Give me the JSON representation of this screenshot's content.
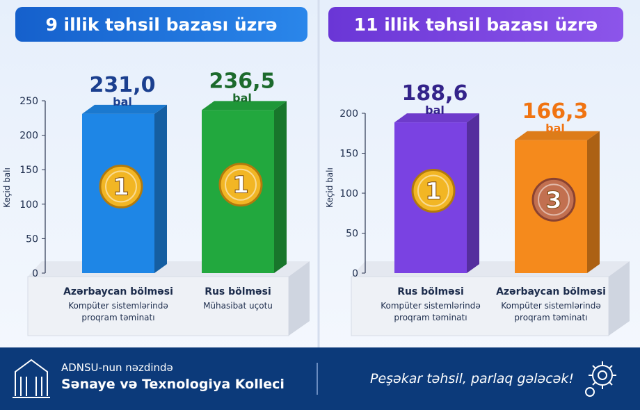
{
  "chart_data": [
    {
      "type": "bar",
      "title": "9 illik təhsil bazası üzrə",
      "y_label": "Keçid balı",
      "unit": "bal",
      "categories": [
        "Azərbaycan bölməsi",
        "Rus bölməsi"
      ],
      "subcategories": [
        "Kompüter sistemlərində proqram təminatı",
        "Mühasibat uçotu"
      ],
      "values": [
        231.0,
        236.5
      ],
      "value_labels": [
        "231,0",
        "236,5"
      ],
      "ranks": [
        1,
        1
      ],
      "colors": [
        "#1e86e6",
        "#22a83e"
      ],
      "label_colors": [
        "#1b3f8f",
        "#1c6a2c"
      ],
      "ylim": [
        0,
        250
      ],
      "yticks": [
        0,
        50,
        100,
        150,
        200,
        250
      ]
    },
    {
      "type": "bar",
      "title": "11 illik təhsil bazası üzrə",
      "y_label": "Keçid balı",
      "unit": "bal",
      "categories": [
        "Rus bölməsi",
        "Azərbaycan bölməsi"
      ],
      "subcategories": [
        "Kompüter sistemlərində proqram təminatı",
        "Kompüter sistemlərində proqram təminatı"
      ],
      "values": [
        188.6,
        166.3
      ],
      "value_labels": [
        "188,6",
        "166,3"
      ],
      "ranks": [
        1,
        3
      ],
      "colors": [
        "#7a42e2",
        "#f58a1c"
      ],
      "label_colors": [
        "#33238a",
        "#f07412"
      ],
      "ylim": [
        0,
        200
      ],
      "yticks": [
        0,
        50,
        100,
        150,
        200
      ]
    }
  ],
  "footer": {
    "line1": "ADNSU-nun nəzdində",
    "line2": "Sənaye və Texnologiya Kolleci",
    "slogan": "Peşəkar təhsil, parlaq gələcək!"
  }
}
